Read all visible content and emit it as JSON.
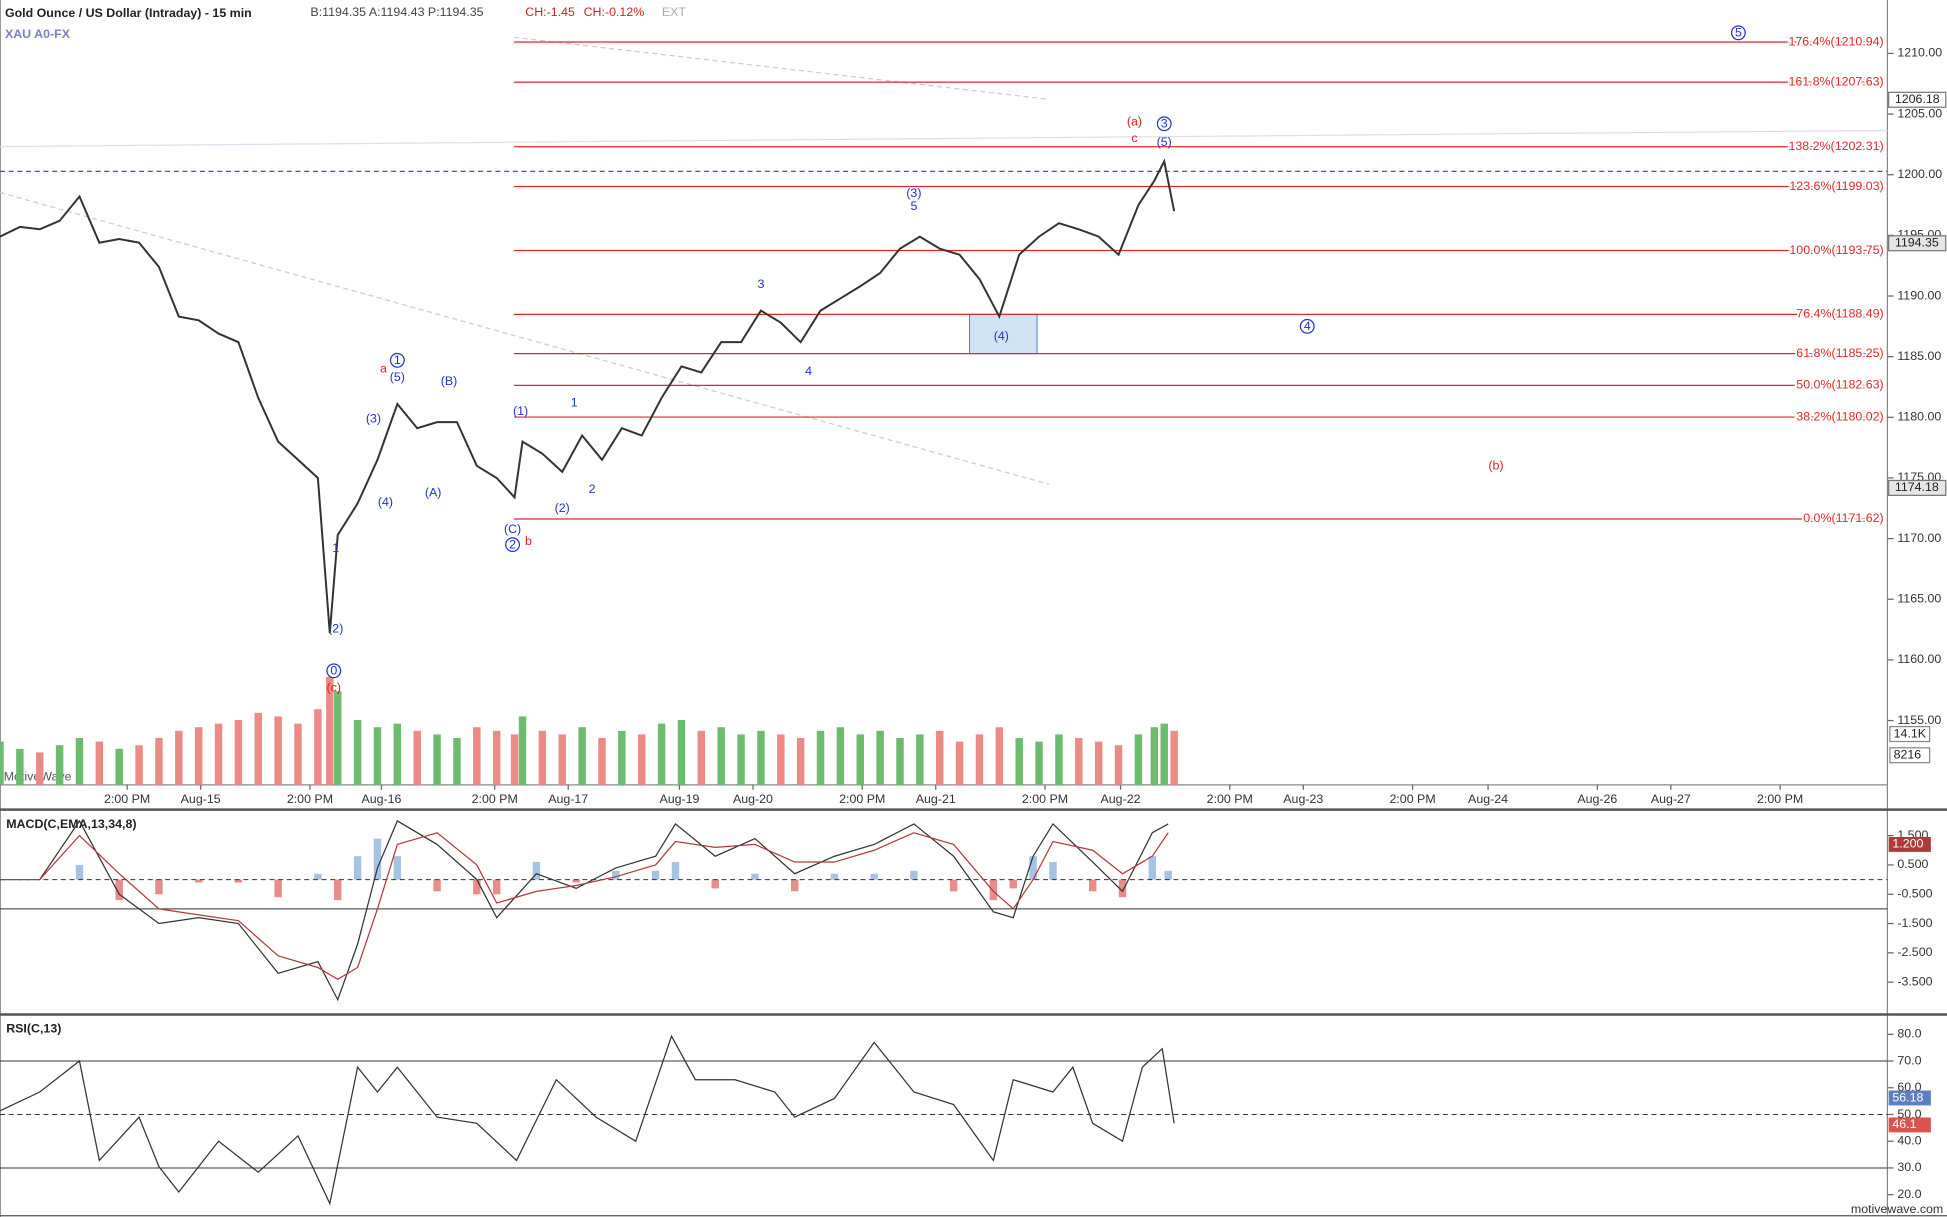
{
  "chart_data": [
    {
      "type": "line",
      "title": "Gold Ounce / US Dollar (Intraday) - 15 min",
      "quote": "B:1194.35 A:1194.43 P:1194.35",
      "change": "CH:-1.45",
      "change_pct": "CH:-0.12%",
      "ext": "EXT",
      "subtitle": "XAU A0-FX",
      "watermark": "MotiveWave",
      "xlim": [
        0,
        950
      ],
      "xticks": [
        {
          "value": 64,
          "label": "2:00 PM"
        },
        {
          "value": 101,
          "label": "Aug-15"
        },
        {
          "value": 156,
          "label": "2:00 PM"
        },
        {
          "value": 192,
          "label": "Aug-16"
        },
        {
          "value": 249,
          "label": "2:00 PM"
        },
        {
          "value": 286,
          "label": "Aug-17"
        },
        {
          "value": 342,
          "label": "Aug-19"
        },
        {
          "value": 379,
          "label": "Aug-20"
        },
        {
          "value": 434,
          "label": "2:00 PM"
        },
        {
          "value": 471,
          "label": "Aug-21"
        },
        {
          "value": 526,
          "label": "2:00 PM"
        },
        {
          "value": 564,
          "label": "Aug-22"
        },
        {
          "value": 619,
          "label": "2:00 PM"
        },
        {
          "value": 656,
          "label": "Aug-23"
        },
        {
          "value": 711,
          "label": "2:00 PM"
        },
        {
          "value": 749,
          "label": "Aug-24"
        },
        {
          "value": 804,
          "label": "Aug-26"
        },
        {
          "value": 841,
          "label": "Aug-27"
        },
        {
          "value": 896,
          "label": "2:00 PM"
        }
      ],
      "ylim": [
        1149.7,
        1214.4
      ],
      "yticks": [
        {
          "value": 1155,
          "label": "1155.00"
        },
        {
          "value": 1160,
          "label": "1160.00"
        },
        {
          "value": 1165,
          "label": "1165.00"
        },
        {
          "value": 1170,
          "label": "1170.00"
        },
        {
          "value": 1175,
          "label": "1175.00"
        },
        {
          "value": 1180,
          "label": "1180.00"
        },
        {
          "value": 1185,
          "label": "1185.00"
        },
        {
          "value": 1190,
          "label": "1190.00"
        },
        {
          "value": 1195,
          "label": "1195.00"
        },
        {
          "value": 1200,
          "label": "1200.00"
        },
        {
          "value": 1205,
          "label": "1205.00"
        },
        {
          "value": 1210,
          "label": "1210.00"
        }
      ],
      "y2lim": [
        0,
        218000
      ],
      "y2ticks": [
        {
          "value": 14100,
          "label": "14.1K"
        },
        8216
      ],
      "x": [
        0,
        10,
        20,
        30,
        40,
        50,
        60,
        70,
        80,
        90,
        100,
        110,
        120,
        130,
        140,
        150,
        160,
        166,
        170,
        180,
        190,
        200,
        210,
        220,
        230,
        240,
        250,
        259,
        263,
        273,
        283,
        293,
        303,
        313,
        323,
        333,
        343,
        353,
        363,
        373,
        383,
        393,
        403,
        413,
        423,
        433,
        443,
        453,
        463,
        473,
        483,
        493,
        503,
        513,
        523,
        533,
        543,
        553,
        563,
        573,
        581,
        586,
        591
      ],
      "series": [
        {
          "color": "#333333",
          "values": [
            1194.9,
            1195.7,
            1195.5,
            1196.2,
            1198.2,
            1194.4,
            1194.7,
            1194.4,
            1192.4,
            1188.3,
            1188.0,
            1186.9,
            1186.2,
            1181.6,
            1178.0,
            1176.5,
            1175.0,
            1162.2,
            1170.3,
            1172.9,
            1176.5,
            1181.1,
            1179.1,
            1179.6,
            1179.6,
            1176.0,
            1175.0,
            1173.4,
            1178.0,
            1177.0,
            1175.5,
            1178.5,
            1176.5,
            1179.1,
            1178.5,
            1181.6,
            1184.2,
            1183.7,
            1186.2,
            1186.2,
            1188.8,
            1187.8,
            1186.2,
            1188.8,
            1189.8,
            1190.8,
            1191.9,
            1193.9,
            1194.9,
            1193.9,
            1193.4,
            1191.4,
            1188.3,
            1193.4,
            1194.9,
            1196.0,
            1195.5,
            1194.9,
            1193.4,
            1197.5,
            1199.5,
            1201.1,
            1197.0
          ]
        },
        {
          "axis": "y2",
          "up_color": "#6dbb6d",
          "down_color": "#ec8a86",
          "values": [
            12000,
            10000,
            9000,
            11000,
            13000,
            12000,
            10000,
            11000,
            13000,
            15000,
            16000,
            17000,
            18000,
            20000,
            19000,
            17000,
            21000,
            30000,
            26000,
            18000,
            16000,
            17000,
            15000,
            14000,
            13000,
            16000,
            15000,
            14000,
            19000,
            15000,
            14000,
            16000,
            13000,
            15000,
            14000,
            17000,
            18000,
            15000,
            16000,
            14000,
            15000,
            14000,
            13000,
            15000,
            16000,
            14000,
            15000,
            13000,
            14000,
            15000,
            12000,
            14000,
            16000,
            13000,
            12000,
            14000,
            13000,
            12000,
            11000,
            14000,
            16000,
            17000,
            15000
          ]
        }
      ],
      "fib_color": "#e0282a",
      "fib_levels": [
        {
          "value": 1210.94,
          "label": "176.4%(1210.94)"
        },
        {
          "value": 1207.63,
          "label": "161.8%(1207.63)"
        },
        {
          "value": 1202.31,
          "label": "138.2%(1202.31)"
        },
        {
          "value": 1199.03,
          "label": "123.6%(1199.03)"
        },
        {
          "value": 1193.75,
          "label": "100.0%(1193.75)"
        },
        {
          "value": 1188.49,
          "label": "76.4%(1188.49)"
        },
        {
          "value": 1185.25,
          "label": "61.8%(1185.25)"
        },
        {
          "value": 1182.63,
          "label": "50.0%(1182.63)"
        },
        {
          "value": 1180.02,
          "label": "38.2%(1180.02)"
        },
        {
          "value": 1171.62,
          "label": "0.0%(1171.62)"
        }
      ],
      "box": {
        "x": [
          488,
          522
        ],
        "y": [
          1185.25,
          1188.49
        ],
        "color": "#cfe3f5"
      },
      "price_tags": [
        1206.18,
        1194.35,
        1174.18
      ],
      "annotations": [
        {
          "text": "1",
          "x": 200,
          "y": 1184.7,
          "color": "#2233cc",
          "circled": true
        },
        {
          "text": "a",
          "x": 193,
          "y": 1184.0,
          "color": "#dd2222"
        },
        {
          "text": "(5)",
          "x": 200,
          "y": 1183.3,
          "color": "#2233cc"
        },
        {
          "text": "(3)",
          "x": 188,
          "y": 1179.9,
          "color": "#2233cc"
        },
        {
          "text": "(4)",
          "x": 194,
          "y": 1173.0,
          "color": "#2233cc"
        },
        {
          "text": "(A)",
          "x": 218,
          "y": 1173.8,
          "color": "#2233cc"
        },
        {
          "text": "(B)",
          "x": 226,
          "y": 1183.0,
          "color": "#2233cc"
        },
        {
          "text": "(1)",
          "x": 262,
          "y": 1180.5,
          "color": "#2233cc"
        },
        {
          "text": "1",
          "x": 289,
          "y": 1181.2,
          "color": "#2233cc"
        },
        {
          "text": "(2)",
          "x": 283,
          "y": 1172.5,
          "color": "#2233cc"
        },
        {
          "text": "2",
          "x": 298,
          "y": 1174.1,
          "color": "#2233cc"
        },
        {
          "text": "(C)",
          "x": 258,
          "y": 1170.8,
          "color": "#2233cc"
        },
        {
          "text": "2",
          "x": 258,
          "y": 1169.5,
          "color": "#2233cc",
          "circled": true
        },
        {
          "text": "b",
          "x": 266,
          "y": 1169.8,
          "color": "#dd2222"
        },
        {
          "text": "(3)",
          "x": 460,
          "y": 1198.5,
          "color": "#2233cc"
        },
        {
          "text": "5",
          "x": 460,
          "y": 1197.4,
          "color": "#2233cc"
        },
        {
          "text": "3",
          "x": 383,
          "y": 1191.0,
          "color": "#2233cc"
        },
        {
          "text": "4",
          "x": 407,
          "y": 1183.8,
          "color": "#2233cc"
        },
        {
          "text": "(4)",
          "x": 504,
          "y": 1186.7,
          "color": "#2233cc"
        },
        {
          "text": "(a)",
          "x": 571,
          "y": 1204.4,
          "color": "#dd2222"
        },
        {
          "text": "c",
          "x": 571,
          "y": 1203.0,
          "color": "#dd2222"
        },
        {
          "text": "3",
          "x": 586,
          "y": 1204.2,
          "color": "#2233cc",
          "circled": true
        },
        {
          "text": "(5)",
          "x": 586,
          "y": 1202.7,
          "color": "#2233cc"
        },
        {
          "text": "4",
          "x": 658,
          "y": 1187.5,
          "color": "#2233cc",
          "circled": true
        },
        {
          "text": "5",
          "x": 875,
          "y": 1211.7,
          "color": "#2233cc",
          "circled": true
        },
        {
          "text": "(b)",
          "x": 753,
          "y": 1176.0,
          "color": "#dd2222"
        },
        {
          "text": "0",
          "x": 168,
          "y": 1159.1,
          "color": "#2233cc",
          "circled": true
        },
        {
          "text": "(c)",
          "x": 168,
          "y": 1157.7,
          "color": "#dd2222"
        },
        {
          "text": "(2)",
          "x": 169,
          "y": 1162.6,
          "color": "#2233cc"
        },
        {
          "text": "1",
          "x": 169,
          "y": 1169.2,
          "color": "#2233cc"
        }
      ]
    },
    {
      "type": "line",
      "title": "MACD(C,EMA,13,34,8)",
      "xlim": [
        0,
        950
      ],
      "ylim": [
        -4.52,
        2.26
      ],
      "yticks": [
        {
          "value": 1.5,
          "label": "1.500"
        },
        {
          "value": 0.5,
          "label": "0.500"
        },
        {
          "value": -0.5,
          "label": "-0.500"
        },
        {
          "value": -1.5,
          "label": "-1.500"
        },
        {
          "value": -2.5,
          "label": "-2.500"
        },
        {
          "value": -3.5,
          "label": "-3.500"
        }
      ],
      "reference_lines": [
        0,
        -1
      ],
      "x": [
        0,
        20,
        40,
        60,
        80,
        100,
        120,
        140,
        160,
        170,
        180,
        190,
        200,
        220,
        240,
        250,
        270,
        290,
        310,
        330,
        340,
        360,
        380,
        400,
        420,
        440,
        460,
        480,
        500,
        510,
        520,
        530,
        550,
        565,
        580,
        588
      ],
      "series": [
        {
          "color": "#333333",
          "values": [
            0,
            0,
            2.0,
            -0.5,
            -1.5,
            -1.3,
            -1.5,
            -3.2,
            -2.8,
            -4.1,
            -2.2,
            0.4,
            2.0,
            1.2,
            0,
            -1.3,
            0.2,
            -0.3,
            0.4,
            0.8,
            1.9,
            0.8,
            1.4,
            0.2,
            0.8,
            1.2,
            1.9,
            0.8,
            -1.1,
            -1.3,
            0.8,
            1.9,
            0.6,
            -0.4,
            1.6,
            1.9
          ]
        },
        {
          "color": "#b03a3a",
          "values": [
            0,
            0,
            1.5,
            0.2,
            -1.0,
            -1.2,
            -1.4,
            -2.6,
            -3.0,
            -3.4,
            -3.0,
            -1.0,
            1.2,
            1.6,
            0.5,
            -0.8,
            -0.4,
            -0.2,
            0.1,
            0.5,
            1.3,
            1.1,
            1.2,
            0.6,
            0.6,
            1.0,
            1.6,
            1.2,
            -0.4,
            -1.0,
            0,
            1.3,
            1.0,
            0.2,
            0.8,
            1.6
          ]
        }
      ],
      "histogram": {
        "up_color": "#8fb4dc",
        "down_color": "#e36f6f",
        "values": [
          0,
          0,
          0.5,
          -0.7,
          -0.5,
          -0.1,
          -0.1,
          -0.6,
          0.2,
          -0.7,
          0.8,
          1.4,
          0.8,
          -0.4,
          -0.5,
          -0.5,
          0.6,
          -0.1,
          0.3,
          0.3,
          0.6,
          -0.3,
          0.2,
          -0.4,
          0.2,
          0.2,
          0.3,
          -0.4,
          -0.7,
          -0.3,
          0.8,
          0.6,
          -0.4,
          -0.6,
          0.8,
          0.3
        ]
      },
      "tags": [
        {
          "value": 1.2,
          "label": "1.200"
        }
      ],
      "tag_colors": [
        "#b03a3a"
      ]
    },
    {
      "type": "line",
      "title": "RSI(C,13)",
      "xlim": [
        0,
        950
      ],
      "ylim": [
        12.6,
        86
      ],
      "yticks": [
        {
          "value": 80,
          "label": "80.0"
        },
        {
          "value": 70,
          "label": "70.0"
        },
        {
          "value": 60,
          "label": "60.0"
        },
        {
          "value": 50,
          "label": "50.0"
        },
        {
          "value": 40,
          "label": "40.0"
        },
        {
          "value": 30,
          "label": "30.0"
        },
        {
          "value": 20,
          "label": "20.0"
        }
      ],
      "reference_lines": [
        70,
        50,
        30
      ],
      "x": [
        0,
        20,
        40,
        50,
        70,
        80,
        90,
        110,
        130,
        150,
        166,
        180,
        190,
        200,
        220,
        240,
        260,
        280,
        300,
        320,
        338,
        350,
        370,
        390,
        400,
        420,
        440,
        460,
        480,
        500,
        510,
        530,
        540,
        550,
        565,
        575,
        585,
        591
      ],
      "series": [
        {
          "color": "#333333",
          "values": [
            51.4,
            58.4,
            70,
            32.8,
            49,
            30.5,
            21,
            40,
            28.4,
            42,
            16.7,
            67.7,
            58.4,
            67.7,
            49,
            46.7,
            32.8,
            63,
            49,
            40,
            79.3,
            63,
            63,
            58.4,
            49,
            56,
            77,
            58.4,
            53.7,
            32.8,
            63,
            58.4,
            67.7,
            46.7,
            40,
            67.7,
            74.6,
            46.7
          ]
        }
      ],
      "tags": [
        56.18,
        46.1
      ],
      "tag_colors": [
        "#5b7fbf",
        "#d9534f"
      ]
    }
  ],
  "footer": "motivewave.com"
}
